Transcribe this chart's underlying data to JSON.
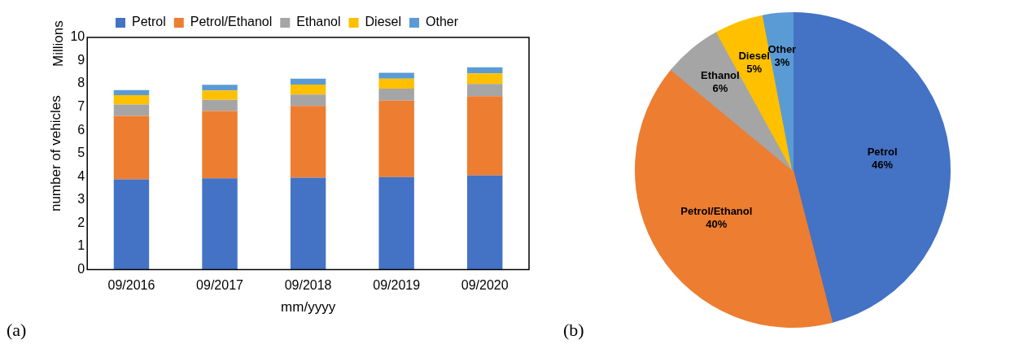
{
  "chart_data": [
    {
      "type": "bar",
      "stacked": true,
      "xlabel": "mm/yyyy",
      "ylabel": "number of vehicles",
      "annotations": [
        "Millions",
        "(a)"
      ],
      "categories": [
        "09/2016",
        "09/2017",
        "09/2018",
        "09/2019",
        "09/2020"
      ],
      "series": [
        {
          "name": "Petrol",
          "color": "#4472c4",
          "values": [
            3.89,
            3.93,
            3.96,
            3.98,
            4.05
          ]
        },
        {
          "name": "Petrol/Ethanol",
          "color": "#ed7d31",
          "values": [
            2.73,
            2.9,
            3.09,
            3.3,
            3.42
          ]
        },
        {
          "name": "Ethanol",
          "color": "#a5a5a5",
          "values": [
            0.49,
            0.48,
            0.49,
            0.51,
            0.52
          ]
        },
        {
          "name": "Diesel",
          "color": "#ffc000",
          "values": [
            0.4,
            0.4,
            0.43,
            0.43,
            0.46
          ]
        },
        {
          "name": "Other",
          "color": "#5b9bd5",
          "values": [
            0.22,
            0.25,
            0.25,
            0.26,
            0.26
          ]
        }
      ],
      "ylim": [
        0,
        10
      ],
      "yticks": [
        0,
        1,
        2,
        3,
        4,
        5,
        6,
        7,
        8,
        9,
        10
      ],
      "grid": false,
      "legend": "top"
    },
    {
      "type": "pie",
      "categories": [
        "Petrol",
        "Petrol/Ethanol",
        "Ethanol",
        "Diesel",
        "Other"
      ],
      "values": [
        46,
        40,
        6,
        5,
        3
      ],
      "colors": [
        "#4472c4",
        "#ed7d31",
        "#a5a5a5",
        "#ffc000",
        "#5b9bd5"
      ],
      "value_labels": [
        "46%",
        "40%",
        "6%",
        "5%",
        "3%"
      ],
      "annotations": [
        "(b)"
      ]
    }
  ]
}
